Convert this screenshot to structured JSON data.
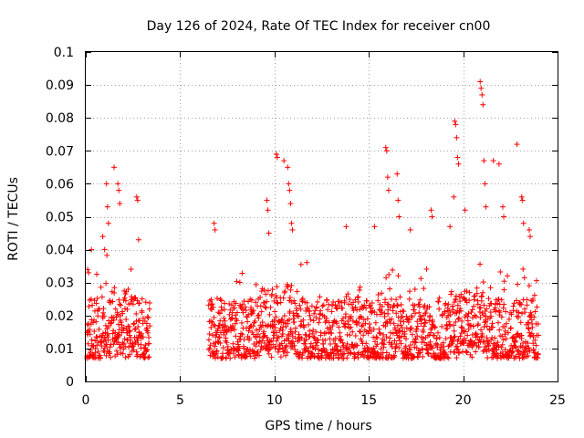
{
  "chart_data": {
    "type": "scatter",
    "title": "Day 126 of 2024, Rate Of TEC Index for receiver cn00",
    "xlabel": "GPS time / hours",
    "ylabel": "ROTI / TECUs",
    "xlim": [
      0,
      25
    ],
    "ylim": [
      0,
      0.1
    ],
    "x_ticks": [
      "0",
      "5",
      "10",
      "15",
      "20",
      "25"
    ],
    "y_ticks": [
      "0",
      "0.01",
      "0.02",
      "0.03",
      "0.04",
      "0.05",
      "0.06",
      "0.07",
      "0.08",
      "0.09",
      "0.1"
    ],
    "grid": true,
    "marker": "+",
    "color": "#ff0000",
    "data_gap_hours": [
      3.4,
      6.5
    ],
    "series": [
      {
        "name": "ROTI",
        "typical_band": [
          0.007,
          0.025
        ],
        "points": [
          [
            0.1,
            0.034
          ],
          [
            0.15,
            0.033
          ],
          [
            0.3,
            0.04
          ],
          [
            0.9,
            0.044
          ],
          [
            1.0,
            0.04
          ],
          [
            1.1,
            0.06
          ],
          [
            1.15,
            0.053
          ],
          [
            1.2,
            0.048
          ],
          [
            1.5,
            0.065
          ],
          [
            1.7,
            0.06
          ],
          [
            1.75,
            0.058
          ],
          [
            1.8,
            0.054
          ],
          [
            2.7,
            0.056
          ],
          [
            2.75,
            0.055
          ],
          [
            2.8,
            0.043
          ],
          [
            6.8,
            0.048
          ],
          [
            6.85,
            0.046
          ],
          [
            9.6,
            0.055
          ],
          [
            9.65,
            0.052
          ],
          [
            9.7,
            0.045
          ],
          [
            10.1,
            0.069
          ],
          [
            10.15,
            0.068
          ],
          [
            10.5,
            0.067
          ],
          [
            10.7,
            0.065
          ],
          [
            10.75,
            0.06
          ],
          [
            10.8,
            0.058
          ],
          [
            10.85,
            0.054
          ],
          [
            10.9,
            0.048
          ],
          [
            10.95,
            0.046
          ],
          [
            13.8,
            0.047
          ],
          [
            15.3,
            0.047
          ],
          [
            15.9,
            0.071
          ],
          [
            15.95,
            0.07
          ],
          [
            16.0,
            0.062
          ],
          [
            16.05,
            0.058
          ],
          [
            16.5,
            0.063
          ],
          [
            16.55,
            0.055
          ],
          [
            16.6,
            0.05
          ],
          [
            17.2,
            0.046
          ],
          [
            18.3,
            0.052
          ],
          [
            18.35,
            0.05
          ],
          [
            19.3,
            0.047
          ],
          [
            19.5,
            0.056
          ],
          [
            19.55,
            0.079
          ],
          [
            19.6,
            0.078
          ],
          [
            19.65,
            0.074
          ],
          [
            19.7,
            0.068
          ],
          [
            19.75,
            0.066
          ],
          [
            20.1,
            0.052
          ],
          [
            20.9,
            0.091
          ],
          [
            20.95,
            0.089
          ],
          [
            21.0,
            0.087
          ],
          [
            21.05,
            0.084
          ],
          [
            21.1,
            0.067
          ],
          [
            21.15,
            0.06
          ],
          [
            21.2,
            0.053
          ],
          [
            21.6,
            0.067
          ],
          [
            21.9,
            0.066
          ],
          [
            22.1,
            0.053
          ],
          [
            22.15,
            0.05
          ],
          [
            22.85,
            0.072
          ],
          [
            23.1,
            0.056
          ],
          [
            23.15,
            0.055
          ],
          [
            23.2,
            0.048
          ],
          [
            23.5,
            0.046
          ],
          [
            23.55,
            0.044
          ]
        ]
      }
    ]
  }
}
